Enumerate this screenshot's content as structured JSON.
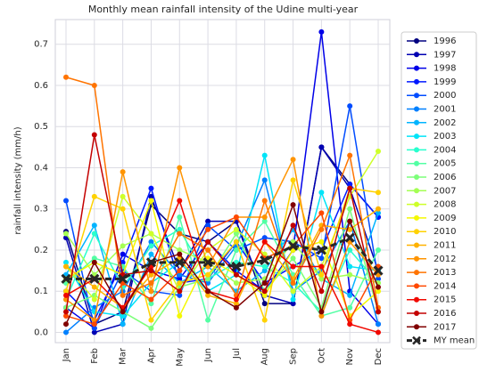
{
  "chart_data": {
    "type": "line",
    "title": "Monthly mean rainfall intensity of the Udine multi-year",
    "y_label": "rainfall intensity (mm/h)",
    "categories": [
      "Jan",
      "Feb",
      "Mar",
      "Apr",
      "May",
      "Jun",
      "Jul",
      "Aug",
      "Sep",
      "Oct",
      "Nov",
      "Dec"
    ],
    "ylim": [
      -0.025,
      0.76
    ],
    "yticks": [
      {
        "value": 0,
        "label": "0.0"
      },
      0.1,
      0.2,
      0.3,
      0.4,
      0.5,
      0.6,
      0.7
    ],
    "grid": true,
    "legend": "right",
    "series": [
      {
        "name": "1996",
        "color": "#000080",
        "values": [
          0.245,
          0.02,
          0.05,
          0.31,
          0.24,
          0.22,
          0.27,
          0.07,
          0.07,
          0.45,
          0.36,
          0.28
        ]
      },
      {
        "name": "1997",
        "color": "#0000b2",
        "values": [
          0.23,
          0.0,
          0.02,
          0.33,
          0.15,
          0.27,
          0.27,
          0.09,
          0.07,
          0.45,
          0.35,
          0.15
        ]
      },
      {
        "name": "1998",
        "color": "#0000e8",
        "values": [
          0.06,
          0.01,
          0.19,
          0.15,
          0.13,
          0.22,
          0.15,
          0.1,
          0.2,
          0.73,
          0.1,
          0.02
        ]
      },
      {
        "name": "1999",
        "color": "#0018ff",
        "values": [
          0.1,
          0.03,
          0.17,
          0.35,
          0.12,
          0.13,
          0.22,
          0.12,
          0.16,
          0.2,
          0.36,
          0.28
        ]
      },
      {
        "name": "2000",
        "color": "#004cff",
        "values": [
          0.32,
          0.01,
          0.15,
          0.1,
          0.09,
          0.26,
          0.2,
          0.23,
          0.22,
          0.18,
          0.55,
          0.13
        ]
      },
      {
        "name": "2001",
        "color": "#0080ff",
        "values": [
          0.0,
          0.06,
          0.1,
          0.22,
          0.14,
          0.12,
          0.21,
          0.37,
          0.1,
          0.15,
          0.27,
          0.02
        ]
      },
      {
        "name": "2002",
        "color": "#00b4ff",
        "values": [
          0.14,
          0.26,
          0.02,
          0.19,
          0.12,
          0.16,
          0.1,
          0.15,
          0.25,
          0.13,
          0.09,
          0.29
        ]
      },
      {
        "name": "2003",
        "color": "#00e4f8",
        "values": [
          0.17,
          0.05,
          0.04,
          0.12,
          0.17,
          0.1,
          0.14,
          0.43,
          0.08,
          0.34,
          0.16,
          0.15
        ]
      },
      {
        "name": "2004",
        "color": "#29ffce",
        "values": [
          0.08,
          0.24,
          0.11,
          0.21,
          0.25,
          0.13,
          0.17,
          0.16,
          0.12,
          0.05,
          0.2,
          0.12
        ]
      },
      {
        "name": "2005",
        "color": "#53ffa4",
        "values": [
          0.12,
          0.18,
          0.16,
          0.07,
          0.28,
          0.03,
          0.2,
          0.27,
          0.14,
          0.04,
          0.06,
          0.2
        ]
      },
      {
        "name": "2006",
        "color": "#7dff7a",
        "values": [
          0.06,
          0.09,
          0.05,
          0.01,
          0.11,
          0.13,
          0.24,
          0.1,
          0.18,
          0.06,
          0.3,
          0.05
        ]
      },
      {
        "name": "2007",
        "color": "#a4ff53",
        "values": [
          0.24,
          0.14,
          0.21,
          0.24,
          0.2,
          0.17,
          0.12,
          0.13,
          0.22,
          0.13,
          0.14,
          0.12
        ]
      },
      {
        "name": "2008",
        "color": "#ceff29",
        "values": [
          0.16,
          0.08,
          0.33,
          0.24,
          0.1,
          0.2,
          0.25,
          0.19,
          0.1,
          0.16,
          0.33,
          0.44
        ]
      },
      {
        "name": "2009",
        "color": "#f4f802",
        "values": [
          0.13,
          0.17,
          0.14,
          0.32,
          0.04,
          0.18,
          0.14,
          0.09,
          0.2,
          0.22,
          0.04,
          0.1
        ]
      },
      {
        "name": "2010",
        "color": "#ffd200",
        "values": [
          0.1,
          0.33,
          0.3,
          0.03,
          0.12,
          0.14,
          0.22,
          0.03,
          0.37,
          0.14,
          0.35,
          0.34
        ]
      },
      {
        "name": "2011",
        "color": "#ffb200",
        "values": [
          0.16,
          0.11,
          0.06,
          0.14,
          0.18,
          0.09,
          0.07,
          0.22,
          0.13,
          0.26,
          0.25,
          0.3
        ]
      },
      {
        "name": "2012",
        "color": "#ff9400",
        "values": [
          0.08,
          0.03,
          0.39,
          0.1,
          0.4,
          0.16,
          0.28,
          0.28,
          0.42,
          0.04,
          0.22,
          0.14
        ]
      },
      {
        "name": "2013",
        "color": "#ff7400",
        "values": [
          0.62,
          0.6,
          0.09,
          0.12,
          0.24,
          0.2,
          0.09,
          0.32,
          0.12,
          0.25,
          0.43,
          0.06
        ]
      },
      {
        "name": "2014",
        "color": "#ff4800",
        "values": [
          0.04,
          0.02,
          0.12,
          0.08,
          0.15,
          0.25,
          0.28,
          0.18,
          0.21,
          0.29,
          0.03,
          0.16
        ]
      },
      {
        "name": "2015",
        "color": "#f10800",
        "values": [
          0.09,
          0.13,
          0.06,
          0.16,
          0.32,
          0.1,
          0.08,
          0.22,
          0.16,
          0.16,
          0.02,
          0.0
        ]
      },
      {
        "name": "2016",
        "color": "#c40000",
        "values": [
          0.05,
          0.48,
          0.14,
          0.15,
          0.1,
          0.22,
          0.14,
          0.1,
          0.26,
          0.1,
          0.35,
          0.05
        ]
      },
      {
        "name": "2017",
        "color": "#800000",
        "values": [
          0.02,
          0.17,
          0.05,
          0.17,
          0.19,
          0.1,
          0.06,
          0.12,
          0.31,
          0.05,
          0.27,
          0.11
        ]
      },
      {
        "name": "MY mean",
        "color": "#262626",
        "dashed": true,
        "marker": "x",
        "values": [
          0.13,
          0.13,
          0.13,
          0.17,
          0.17,
          0.17,
          0.16,
          0.175,
          0.21,
          0.2,
          0.23,
          0.15
        ]
      }
    ]
  }
}
